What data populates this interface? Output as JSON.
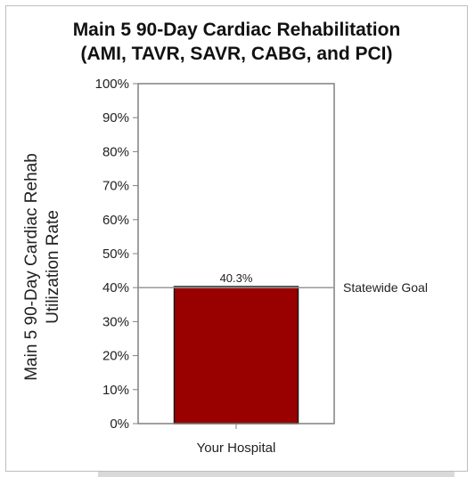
{
  "chart_data": {
    "type": "bar",
    "title_lines": [
      "Main 5 90-Day Cardiac Rehabilitation",
      "(AMI, TAVR, SAVR, CABG, and PCI)"
    ],
    "ylabel_lines": [
      "Main 5 90-Day Cardiac Rehab",
      "Utilization Rate"
    ],
    "xlabel": "",
    "categories": [
      "Your Hospital"
    ],
    "values": [
      40.3
    ],
    "value_labels": [
      "40.3%"
    ],
    "ylim": [
      0,
      100
    ],
    "yticks": [
      0,
      10,
      20,
      30,
      40,
      50,
      60,
      70,
      80,
      90,
      100
    ],
    "ytick_labels": [
      "0%",
      "10%",
      "20%",
      "30%",
      "40%",
      "50%",
      "60%",
      "70%",
      "80%",
      "90%",
      "100%"
    ],
    "reference_line": {
      "value": 40,
      "label": "Statewide Goal",
      "color": "#999999"
    },
    "bar_color": "#990000",
    "grid": false,
    "legend": "none"
  }
}
